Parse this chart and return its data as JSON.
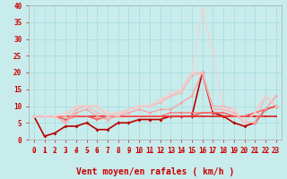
{
  "xlabel": "Vent moyen/en rafales ( km/h )",
  "xlim": [
    -0.5,
    23.5
  ],
  "ylim": [
    0,
    40
  ],
  "yticks": [
    0,
    5,
    10,
    15,
    20,
    25,
    30,
    35,
    40
  ],
  "xticks": [
    0,
    1,
    2,
    3,
    4,
    5,
    6,
    7,
    8,
    9,
    10,
    11,
    12,
    13,
    14,
    15,
    16,
    17,
    18,
    19,
    20,
    21,
    22,
    23
  ],
  "background_color": "#c8ecec",
  "grid_color": "#aadddd",
  "lines": [
    {
      "y": [
        7,
        1,
        2,
        4,
        4,
        5,
        3,
        3,
        5,
        5,
        6,
        6,
        6,
        7,
        7,
        7,
        20,
        8,
        7,
        5,
        4,
        5,
        9,
        10
      ],
      "color": "#bb0000",
      "alpha": 1.0,
      "lw": 1.2,
      "marker": "D",
      "ms": 2.0
    },
    {
      "y": [
        7,
        7,
        7,
        7,
        7,
        7,
        7,
        7,
        7,
        7,
        7,
        7,
        7,
        7,
        7,
        7,
        7,
        7,
        7,
        7,
        7,
        7,
        7,
        7
      ],
      "color": "#dd2222",
      "alpha": 1.0,
      "lw": 1.2,
      "marker": "s",
      "ms": 1.8
    },
    {
      "y": [
        7,
        7,
        7,
        6,
        7,
        7,
        6,
        7,
        7,
        7,
        7,
        7,
        7,
        7,
        7,
        7,
        8,
        8,
        8,
        7,
        7,
        8,
        9,
        10
      ],
      "color": "#ee4444",
      "alpha": 0.9,
      "lw": 1.0,
      "marker": "s",
      "ms": 1.8
    },
    {
      "y": [
        7,
        7,
        7,
        7,
        7,
        7,
        6,
        7,
        7,
        7,
        7,
        7,
        7,
        8,
        8,
        8,
        8,
        8,
        8,
        7,
        7,
        8,
        9,
        10
      ],
      "color": "#ff6666",
      "alpha": 0.85,
      "lw": 1.0,
      "marker": "s",
      "ms": 1.8
    },
    {
      "y": [
        7,
        7,
        7,
        5,
        8,
        9,
        7,
        6,
        7,
        8,
        9,
        8,
        9,
        9,
        11,
        13,
        20,
        9,
        9,
        8,
        5,
        5,
        9,
        13
      ],
      "color": "#ff9999",
      "alpha": 0.85,
      "lw": 1.0,
      "marker": "o",
      "ms": 2.0
    },
    {
      "y": [
        7,
        7,
        7,
        5,
        9,
        10,
        8,
        7,
        8,
        9,
        10,
        10,
        11,
        13,
        14,
        19,
        20,
        10,
        10,
        9,
        5,
        5,
        13,
        10
      ],
      "color": "#ffaaaa",
      "alpha": 0.8,
      "lw": 1.0,
      "marker": "o",
      "ms": 1.8
    },
    {
      "y": [
        7,
        7,
        7,
        7,
        10,
        10,
        10,
        7,
        7,
        9,
        10,
        10,
        12,
        13,
        15,
        20,
        20,
        9,
        9,
        8,
        5,
        8,
        13,
        10
      ],
      "color": "#ffbbbb",
      "alpha": 0.8,
      "lw": 1.0,
      "marker": "o",
      "ms": 1.8
    },
    {
      "y": [
        7,
        7,
        7,
        8,
        10,
        10,
        10,
        8,
        8,
        9,
        10,
        10,
        12,
        14,
        15,
        20,
        39,
        26,
        9,
        9,
        5,
        8,
        13,
        10
      ],
      "color": "#ffcccc",
      "alpha": 0.75,
      "lw": 1.0,
      "marker": "o",
      "ms": 1.8
    }
  ],
  "arrows": [
    "↙",
    "↓",
    "↓",
    "↓",
    "↓",
    "↗",
    "↓",
    "↓",
    "↓",
    "↓",
    "↓",
    "↓",
    "↗",
    "↙",
    "↓",
    "↓",
    "↙",
    "↓",
    "↓",
    "↓",
    "↓",
    "↓",
    "↓",
    "↓"
  ],
  "arrow_color": "#cc0000",
  "xlabel_color": "#cc0000",
  "xlabel_fontsize": 7,
  "tick_color": "#cc0000",
  "tick_fontsize": 5.5
}
